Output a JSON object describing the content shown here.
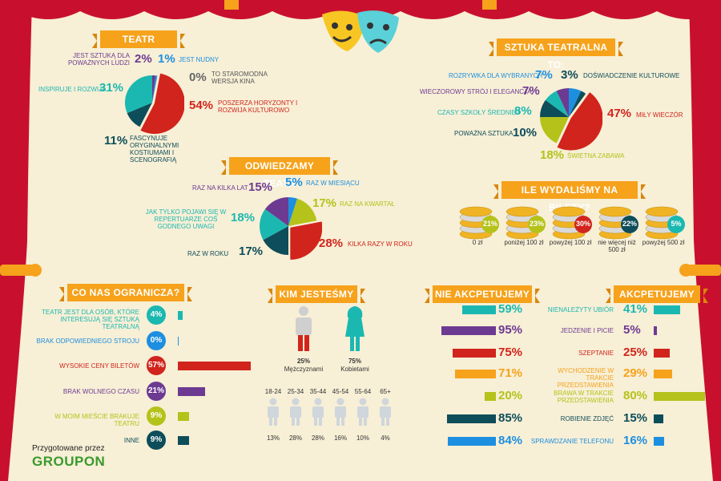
{
  "colors": {
    "curtain": "#c8102e",
    "teal": "#1bb8b1",
    "red": "#d1241c",
    "purple": "#6d3a92",
    "dark": "#0e4d5a",
    "green": "#b5c21a",
    "blue": "#1d8fe0",
    "orange": "#f6a21b"
  },
  "footer": {
    "prepared": "Przygotowane przez",
    "brand": "GROUPON"
  },
  "chart_data": [
    {
      "id": "teatr",
      "type": "pie",
      "title": "TEATR",
      "series": [
        {
          "name": "JEST SZTUKĄ DLA POWAŻNYCH LUDZI",
          "value": 2,
          "label": "2%",
          "color": "#6d3a92"
        },
        {
          "name": "JEST NUDNY",
          "value": 1,
          "label": "1%",
          "color": "#1d8fe0"
        },
        {
          "name": "TO STAROMODNA WERSJA KINA",
          "value": 0,
          "label": "0%",
          "color": "#888888"
        },
        {
          "name": "POSZERZA HORYZONTY I ROZWIJA KULTUROWO",
          "value": 54,
          "label": "54%",
          "color": "#d1241c"
        },
        {
          "name": "FASCYNUJE ORYGINALNYMI KOSTIUMAMI I SCENOGRAFIĄ",
          "value": 11,
          "label": "11%",
          "color": "#0e4d5a"
        },
        {
          "name": "INSPIRUJE I ROZWIJA",
          "value": 31,
          "label": "31%",
          "color": "#1bb8b1"
        }
      ]
    },
    {
      "id": "sztuka",
      "type": "pie",
      "title": "SZTUKA TEATRALNA TO:",
      "series": [
        {
          "name": "ROZRYWKA DLA WYBRANYCH",
          "value": 7,
          "label": "7%",
          "color": "#1d8fe0"
        },
        {
          "name": "DOŚWIADCZENIE KULTUROWE",
          "value": 3,
          "label": "3%",
          "color": "#0e4d5a"
        },
        {
          "name": "MIŁY WIECZÓR",
          "value": 47,
          "label": "47%",
          "color": "#d1241c"
        },
        {
          "name": "ŚWIETNA ZABAWA",
          "value": 18,
          "label": "18%",
          "color": "#b5c21a"
        },
        {
          "name": "POWAŻNA SZTUKA",
          "value": 10,
          "label": "10%",
          "color": "#0e4d5a"
        },
        {
          "name": "CZASY SZKOŁY ŚREDNIEJ",
          "value": 8,
          "label": "8%",
          "color": "#1bb8b1"
        },
        {
          "name": "WIECZOROWY STRÓJ I ELEGANCJA",
          "value": 7,
          "label": "7%",
          "color": "#6d3a92"
        }
      ]
    },
    {
      "id": "odwiedzamy",
      "type": "pie",
      "title": "ODWIEDZAMY TEATR",
      "series": [
        {
          "name": "RAZ W MIESIĄCU",
          "value": 5,
          "label": "5%",
          "color": "#1d8fe0"
        },
        {
          "name": "RAZ NA KWARTAŁ",
          "value": 17,
          "label": "17%",
          "color": "#b5c21a"
        },
        {
          "name": "KILKA RAZY W ROKU",
          "value": 28,
          "label": "28%",
          "color": "#d1241c"
        },
        {
          "name": "RAZ W ROKU",
          "value": 17,
          "label": "17%",
          "color": "#0e4d5a"
        },
        {
          "name": "JAK TYLKO POJAWI SIĘ W REPERTUARZE COŚ GODNEGO UWAGI",
          "value": 18,
          "label": "18%",
          "color": "#1bb8b1"
        },
        {
          "name": "RAZ NA KILKA LAT",
          "value": 15,
          "label": "15%",
          "color": "#6d3a92"
        }
      ]
    },
    {
      "id": "bilety",
      "type": "bar",
      "title": "ILE WYDALIŚMY NA BILETY?",
      "categories": [
        "0 zł",
        "poniżej 100 zł",
        "powyżej 100 zł",
        "nie więcej niż 500 zł",
        "powyżej 500 zł"
      ],
      "values": [
        21,
        23,
        30,
        22,
        5
      ],
      "labels": [
        "21%",
        "23%",
        "30%",
        "22%",
        "5%"
      ],
      "colors": [
        "#b5c21a",
        "#b5c21a",
        "#d1241c",
        "#0e4d5a",
        "#1bb8b1"
      ]
    },
    {
      "id": "ogranicza",
      "type": "bar",
      "title": "CO NAS OGRANICZA?",
      "categories": [
        "TEATR JEST DLA OSÓB, KTÓRE INTERESUJĄ SIĘ SZTUKĄ TEATRALNĄ",
        "BRAK ODPOWIEDNIEGO STROJU",
        "WYSOKIE CENY BILETÓW",
        "BRAK WOLNEGO CZASU",
        "W MOIM MIEŚCIE BRAKUJE TEATRU",
        "INNE"
      ],
      "values": [
        4,
        0,
        57,
        21,
        9,
        9
      ],
      "labels": [
        "4%",
        "0%",
        "57%",
        "21%",
        "9%",
        "9%"
      ],
      "colors": [
        "#1bb8b1",
        "#1d8fe0",
        "#d1241c",
        "#6d3a92",
        "#b5c21a",
        "#0e4d5a"
      ]
    },
    {
      "id": "kim",
      "type": "bar",
      "title": "KIM JESTEŚMY",
      "gender": [
        {
          "name": "Mężczyznami",
          "value": 25,
          "label": "25%"
        },
        {
          "name": "Kobietami",
          "value": 75,
          "label": "75%"
        }
      ],
      "categories": [
        "18-24",
        "25-34",
        "35-44",
        "45-54",
        "55-64",
        "65+"
      ],
      "values": [
        13,
        28,
        28,
        16,
        10,
        4
      ],
      "labels": [
        "13%",
        "28%",
        "28%",
        "16%",
        "10%",
        "4%"
      ]
    },
    {
      "id": "akceptacja",
      "type": "bar",
      "title_left": "NIE AKCPETUJEMY",
      "title_right": "AKCPETUJEMY",
      "categories": [
        "NIENALEŻYTY UBIÓR",
        "JEDZENIE I PICIE",
        "SZEPTANIE",
        "WYCHODZENIE W TRAKCIE PRZEDSTAWIENIA",
        "BRAWA W TRAKCIE PRZEDSTAWIENIA",
        "ROBIENIE ZDJĘĆ",
        "SPRAWDZANIE TELEFONU"
      ],
      "series": [
        {
          "name": "NIE AKCPETUJEMY",
          "values": [
            59,
            95,
            75,
            71,
            20,
            85,
            84
          ],
          "labels": [
            "59%",
            "95%",
            "75%",
            "71%",
            "20%",
            "85%",
            "84%"
          ]
        },
        {
          "name": "AKCPETUJEMY",
          "values": [
            41,
            5,
            25,
            29,
            80,
            15,
            16
          ],
          "labels": [
            "41%",
            "5%",
            "25%",
            "29%",
            "80%",
            "15%",
            "16%"
          ]
        }
      ],
      "colors": [
        "#1bb8b1",
        "#6d3a92",
        "#d1241c",
        "#f6a21b",
        "#b5c21a",
        "#0e4d5a",
        "#1d8fe0"
      ]
    }
  ]
}
